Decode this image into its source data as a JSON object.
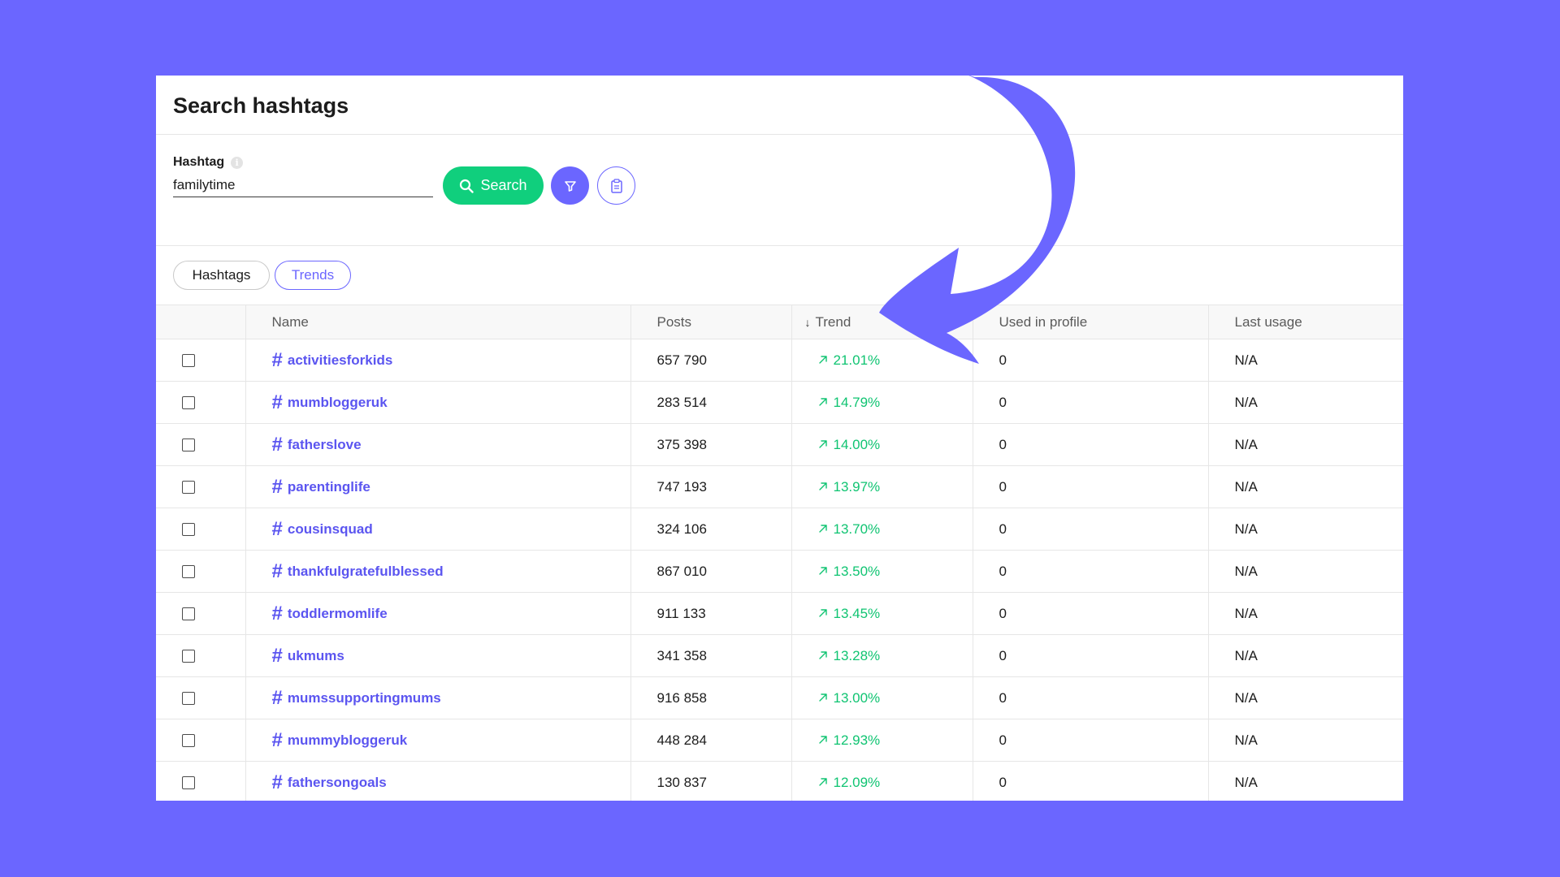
{
  "page": {
    "title": "Search hashtags",
    "colors": {
      "background": "#6b66ff",
      "accent": "#6b66ff",
      "search_button": "#10cf7d",
      "trend_positive": "#10c472",
      "link": "#5b55f0"
    }
  },
  "search": {
    "label": "Hashtag",
    "info_icon": "info-icon",
    "value": "familytime",
    "button_label": "Search",
    "button_icon": "search-icon",
    "filter_icon": "filter-icon",
    "clipboard_icon": "clipboard-icon"
  },
  "tabs": [
    {
      "label": "Hashtags",
      "active": false
    },
    {
      "label": "Trends",
      "active": true
    }
  ],
  "table": {
    "headers": {
      "name": "Name",
      "posts": "Posts",
      "trend": "Trend",
      "used_in_profile": "Used in profile",
      "last_usage": "Last usage"
    },
    "sort_icon": "arrow-down-icon",
    "rows": [
      {
        "name": "activitiesforkids",
        "posts": "657 790",
        "trend": "21.01%",
        "used": "0",
        "last": "N/A"
      },
      {
        "name": "mumbloggeruk",
        "posts": "283 514",
        "trend": "14.79%",
        "used": "0",
        "last": "N/A"
      },
      {
        "name": "fatherslove",
        "posts": "375 398",
        "trend": "14.00%",
        "used": "0",
        "last": "N/A"
      },
      {
        "name": "parentinglife",
        "posts": "747 193",
        "trend": "13.97%",
        "used": "0",
        "last": "N/A"
      },
      {
        "name": "cousinsquad",
        "posts": "324 106",
        "trend": "13.70%",
        "used": "0",
        "last": "N/A"
      },
      {
        "name": "thankfulgratefulblessed",
        "posts": "867 010",
        "trend": "13.50%",
        "used": "0",
        "last": "N/A"
      },
      {
        "name": "toddlermomlife",
        "posts": "911 133",
        "trend": "13.45%",
        "used": "0",
        "last": "N/A"
      },
      {
        "name": "ukmums",
        "posts": "341 358",
        "trend": "13.28%",
        "used": "0",
        "last": "N/A"
      },
      {
        "name": "mumssupportingmums",
        "posts": "916 858",
        "trend": "13.00%",
        "used": "0",
        "last": "N/A"
      },
      {
        "name": "mummybloggeruk",
        "posts": "448 284",
        "trend": "12.93%",
        "used": "0",
        "last": "N/A"
      },
      {
        "name": "fathersongoals",
        "posts": "130 837",
        "trend": "12.09%",
        "used": "0",
        "last": "N/A"
      }
    ]
  }
}
